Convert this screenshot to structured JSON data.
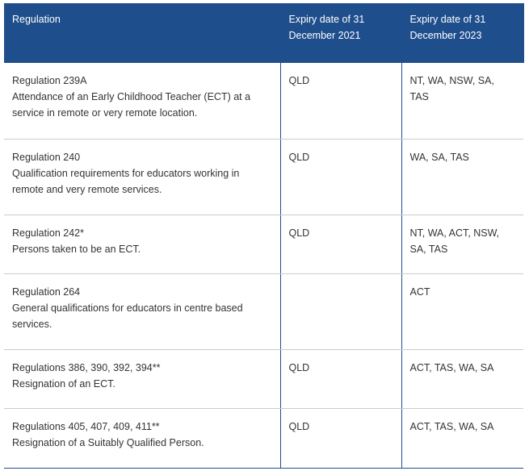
{
  "header": {
    "col1": "Regulation",
    "col2": "Expiry date of 31 December 2021",
    "col3": "Expiry date of 31 December 2023"
  },
  "rows": [
    {
      "regulation": "Regulation 239A",
      "description": "Attendance of an Early Childhood Teacher (ECT) at a service in remote or very remote location.",
      "expiry_2021": "QLD",
      "expiry_2023": "NT, WA, NSW, SA, TAS"
    },
    {
      "regulation": "Regulation 240",
      "description": "Qualification requirements for educators working in remote and very remote services.",
      "expiry_2021": "QLD",
      "expiry_2023": "WA, SA, TAS"
    },
    {
      "regulation": "Regulation 242*",
      "description": "Persons taken to be an ECT.",
      "expiry_2021": "QLD",
      "expiry_2023": "NT, WA, ACT, NSW, SA, TAS"
    },
    {
      "regulation": "Regulation 264",
      "description": "General qualifications for educators in centre based services.",
      "expiry_2021": "",
      "expiry_2023": "ACT"
    },
    {
      "regulation": "Regulations 386, 390, 392, 394**",
      "description": "Resignation of an ECT.",
      "expiry_2021": "QLD",
      "expiry_2023": "ACT, TAS, WA, SA"
    },
    {
      "regulation": "Regulations 405, 407, 409, 411**",
      "description": "Resignation of a Suitably Qualified Person.",
      "expiry_2021": "QLD",
      "expiry_2023": "ACT, TAS, WA, SA"
    }
  ]
}
